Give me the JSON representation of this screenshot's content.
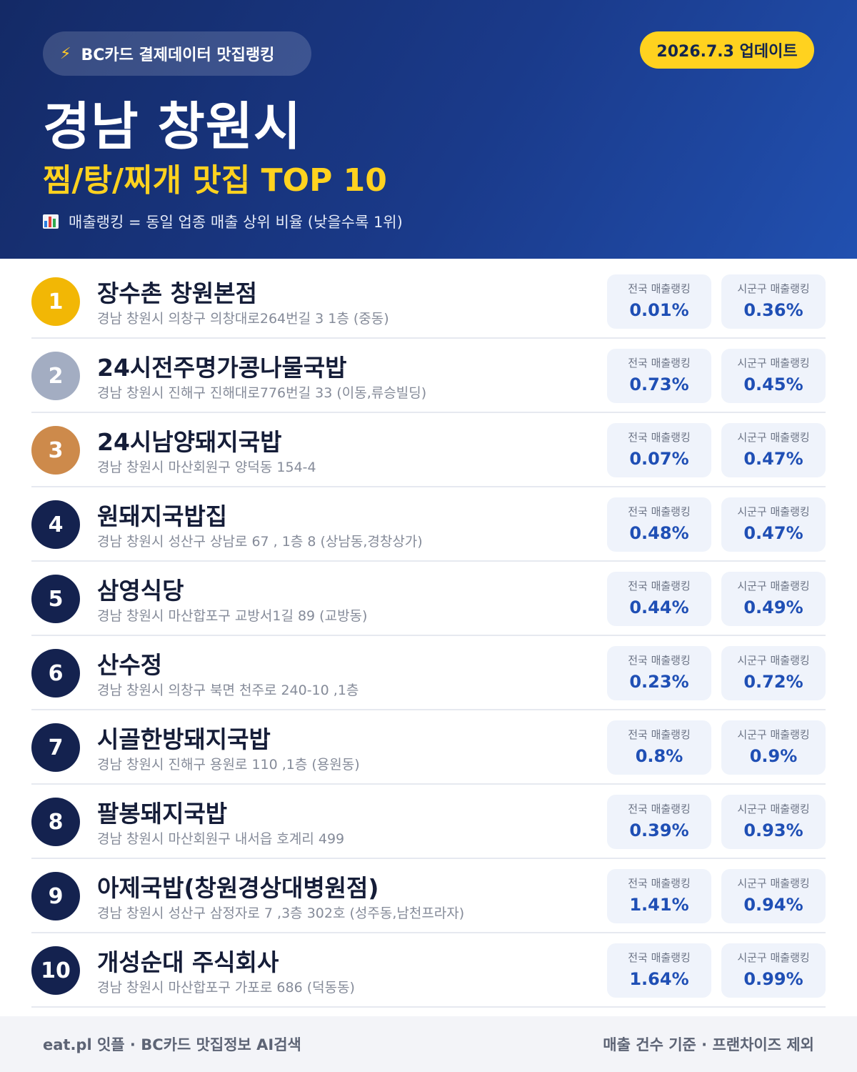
{
  "header": {
    "pill_icon": "lightning-icon",
    "pill_label": "BC카드 결제데이터 맛집랭킹",
    "update_badge": "2026.7.3 업데이트",
    "title": "경남 창원시",
    "subtitle": "찜/탕/찌개 맛집 TOP 10",
    "note_icon": "bar-chart-icon",
    "note": "매출랭킹 = 동일 업종 매출 상위 비율 (낮을수록 1위)"
  },
  "colors": {
    "header_bg": "#1a3a8a",
    "accent_yellow": "#ffd21f",
    "rank_gold": "#f2b705",
    "rank_silver": "#a3adc2",
    "rank_bronze": "#cd8a4b",
    "rank_default": "#14224f",
    "value_blue": "#1f4fb5"
  },
  "stat_labels": {
    "national": "전국 매출랭킹",
    "district": "시군구 매출랭킹"
  },
  "restaurants": [
    {
      "rank": "1",
      "name": "장수촌 창원본점",
      "address": "경남 창원시 의창구 의창대로264번길 3 1층 (중동)",
      "national": "0.01%",
      "district": "0.36%",
      "badge_color": "#f2b705"
    },
    {
      "rank": "2",
      "name": "24시전주명가콩나물국밥",
      "address": "경남 창원시 진해구 진해대로776번길 33 (이동,류승빌딩)",
      "national": "0.73%",
      "district": "0.45%",
      "badge_color": "#a3adc2"
    },
    {
      "rank": "3",
      "name": "24시남양돼지국밥",
      "address": "경남 창원시 마산회원구 양덕동 154-4",
      "national": "0.07%",
      "district": "0.47%",
      "badge_color": "#cd8a4b"
    },
    {
      "rank": "4",
      "name": "원돼지국밥집",
      "address": "경남 창원시 성산구 상남로 67 , 1층 8 (상남동,경창상가)",
      "national": "0.48%",
      "district": "0.47%",
      "badge_color": "#14224f"
    },
    {
      "rank": "5",
      "name": "삼영식당",
      "address": "경남 창원시 마산합포구 교방서1길 89 (교방동)",
      "national": "0.44%",
      "district": "0.49%",
      "badge_color": "#14224f"
    },
    {
      "rank": "6",
      "name": "산수정",
      "address": "경남 창원시 의창구 북면 천주로 240-10 ,1층",
      "national": "0.23%",
      "district": "0.72%",
      "badge_color": "#14224f"
    },
    {
      "rank": "7",
      "name": "시골한방돼지국밥",
      "address": "경남 창원시 진해구 용원로 110 ,1층 (용원동)",
      "national": "0.8%",
      "district": "0.9%",
      "badge_color": "#14224f"
    },
    {
      "rank": "8",
      "name": "팔봉돼지국밥",
      "address": "경남 창원시 마산회원구 내서읍 호계리 499",
      "national": "0.39%",
      "district": "0.93%",
      "badge_color": "#14224f"
    },
    {
      "rank": "9",
      "name": "아제국밥(창원경상대병원점)",
      "address": "경남 창원시 성산구 삼정자로 7 ,3층 302호 (성주동,남천프라자)",
      "national": "1.41%",
      "district": "0.94%",
      "badge_color": "#14224f"
    },
    {
      "rank": "10",
      "name": "개성순대 주식회사",
      "address": "경남 창원시 마산합포구 가포로 686 (덕동동)",
      "national": "1.64%",
      "district": "0.99%",
      "badge_color": "#14224f"
    }
  ],
  "footer": {
    "left": "eat.pl 잇플 · BC카드 맛집정보 AI검색",
    "right": "매출 건수 기준 · 프랜차이즈 제외"
  }
}
